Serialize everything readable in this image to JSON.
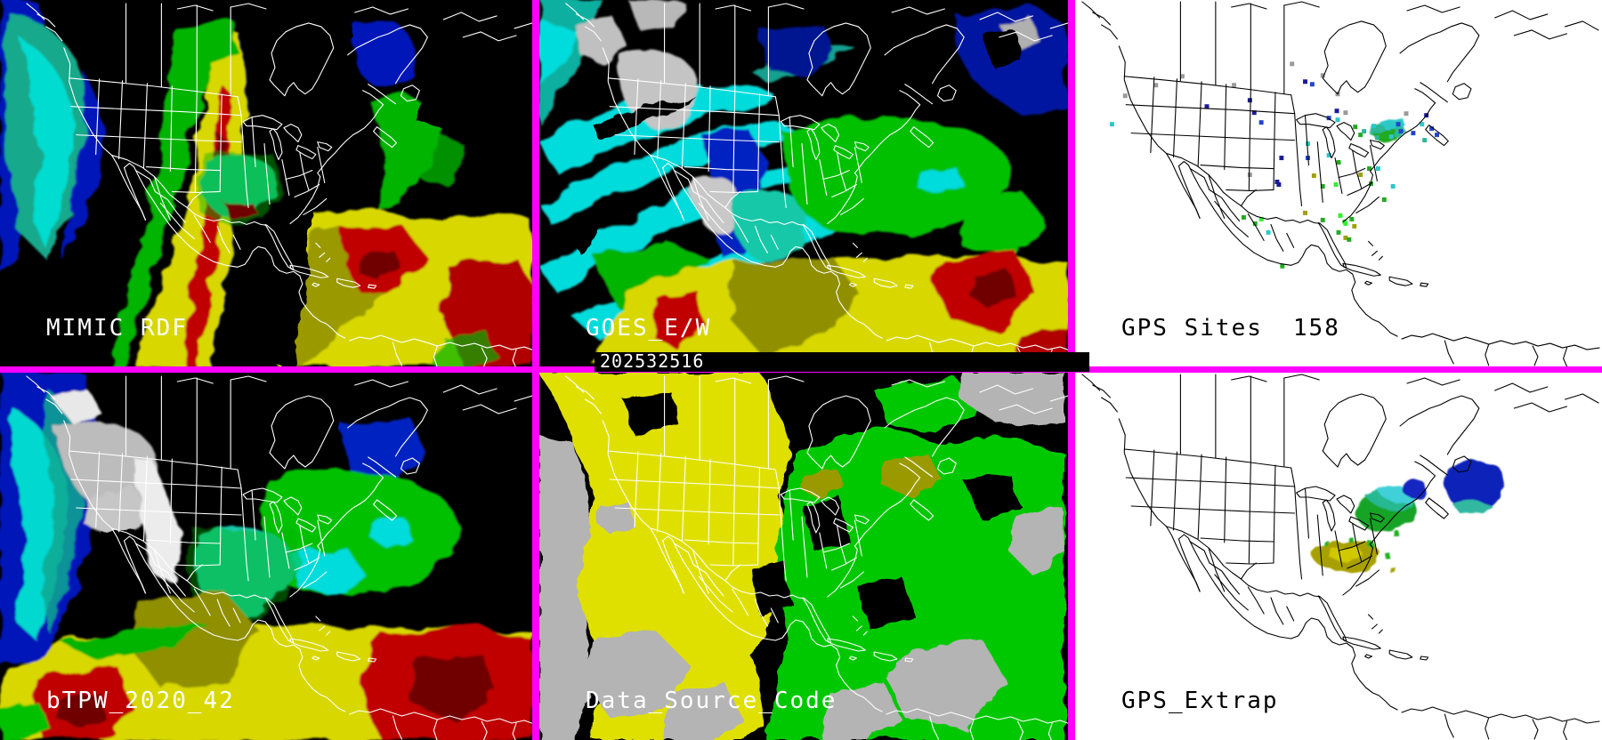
{
  "panels": {
    "mimic_rdf": {
      "label": "MIMIC RDF"
    },
    "goes_ew": {
      "label": "GOES_E/W",
      "timestamp": "202532516"
    },
    "gps_sites": {
      "label": "GPS Sites",
      "site_count": "158"
    },
    "btpw": {
      "label": "bTPW_2020_42"
    },
    "data_source_code": {
      "label": "Data_Source_Code"
    },
    "gps_extrap": {
      "label": "GPS_Extrap"
    }
  },
  "colors": {
    "divider_magenta": "#ff00ff",
    "dark_panel_bg": "#000000",
    "light_panel_bg": "#ffffff",
    "map_outline_on_dark": "#ffffff",
    "map_outline_on_light": "#000000",
    "label_on_dark": "#ffffff",
    "label_on_light": "#000000",
    "timestamp_bar_bg": "#000000",
    "palette": {
      "deep_blue": "#0018b8",
      "blue": "#0033dd",
      "cyan": "#00dcdc",
      "teal": "#18b890",
      "green": "#00c000",
      "bright_green": "#33ee33",
      "olive": "#8f8f00",
      "yellow": "#d8d800",
      "red": "#c00000",
      "dark_red": "#700000",
      "cloud_gray": "#b8b8b8"
    },
    "dot_colors": {
      "navy": "#1a1a99",
      "blue": "#2244cc",
      "gray": "#9a9a9a",
      "green": "#22aa22",
      "bgreen": "#33ee33",
      "cyan": "#2cc8c8",
      "olive": "#a0a000",
      "teal": "#2ab896"
    }
  },
  "gps_dots": [
    [
      42,
      140,
      "cyan"
    ],
    [
      57,
      108,
      "gray"
    ],
    [
      92,
      96,
      "gray"
    ],
    [
      122,
      86,
      "gray"
    ],
    [
      150,
      120,
      "navy"
    ],
    [
      181,
      96,
      "gray"
    ],
    [
      199,
      113,
      "navy"
    ],
    [
      204,
      127,
      "navy"
    ],
    [
      212,
      138,
      "blue"
    ],
    [
      199,
      197,
      "gray"
    ],
    [
      230,
      205,
      "navy"
    ],
    [
      232,
      208,
      "navy"
    ],
    [
      235,
      178,
      "navy"
    ],
    [
      247,
      72,
      "gray"
    ],
    [
      262,
      92,
      "navy"
    ],
    [
      270,
      95,
      "blue"
    ],
    [
      282,
      85,
      "gray"
    ],
    [
      299,
      106,
      "gray"
    ],
    [
      298,
      125,
      "navy"
    ],
    [
      308,
      127,
      "gray"
    ],
    [
      289,
      133,
      "blue"
    ],
    [
      299,
      135,
      "cyan"
    ],
    [
      265,
      162,
      "cyan"
    ],
    [
      265,
      178,
      "blue"
    ],
    [
      289,
      175,
      "cyan"
    ],
    [
      212,
      247,
      "bgreen"
    ],
    [
      220,
      262,
      "cyan"
    ],
    [
      205,
      252,
      "green"
    ],
    [
      192,
      245,
      "green"
    ],
    [
      236,
      300,
      "green"
    ],
    [
      262,
      240,
      "olive"
    ],
    [
      272,
      198,
      "olive"
    ],
    [
      282,
      248,
      "green"
    ],
    [
      302,
      243,
      "bgreen"
    ],
    [
      308,
      252,
      "bgreen"
    ],
    [
      315,
      247,
      "green"
    ],
    [
      318,
      255,
      "olive"
    ],
    [
      282,
      210,
      "green"
    ],
    [
      297,
      208,
      "bgreen"
    ],
    [
      300,
      183,
      "green"
    ],
    [
      307,
      250,
      "bgreen"
    ],
    [
      300,
      262,
      "green"
    ],
    [
      308,
      268,
      "olive"
    ],
    [
      312,
      270,
      "green"
    ],
    [
      325,
      197,
      "olive"
    ],
    [
      335,
      190,
      "green"
    ],
    [
      345,
      190,
      "cyan"
    ],
    [
      337,
      207,
      "green"
    ],
    [
      352,
      225,
      "green"
    ],
    [
      362,
      210,
      "cyan"
    ],
    [
      319,
      143,
      "green"
    ],
    [
      325,
      152,
      "green"
    ],
    [
      329,
      148,
      "teal"
    ],
    [
      377,
      128,
      "gray"
    ],
    [
      385,
      150,
      "blue"
    ],
    [
      395,
      140,
      "cyan"
    ],
    [
      400,
      130,
      "navy"
    ],
    [
      406,
      145,
      "blue"
    ],
    [
      398,
      158,
      "teal"
    ],
    [
      412,
      152,
      "blue"
    ],
    [
      340,
      142,
      "cyan"
    ],
    [
      348,
      146,
      "teal"
    ],
    [
      356,
      144,
      "cyan"
    ],
    [
      362,
      148,
      "green"
    ],
    [
      368,
      140,
      "blue"
    ],
    [
      352,
      152,
      "green"
    ],
    [
      344,
      155,
      "teal"
    ],
    [
      360,
      154,
      "cyan"
    ],
    [
      366,
      152,
      "teal"
    ],
    [
      371,
      148,
      "blue"
    ]
  ]
}
